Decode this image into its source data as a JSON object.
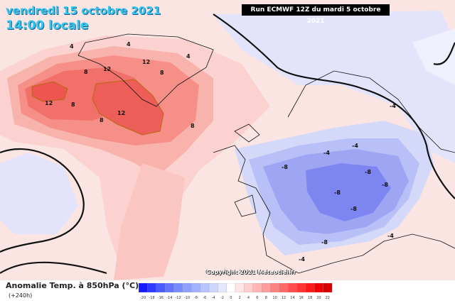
{
  "header": {
    "date_line": "vendredi 15 octobre 2021",
    "time_line": "14:00 locale",
    "run_info": "Run ECMWF 12Z du mardi 5 octobre 2021"
  },
  "footer": {
    "copyright": "Copyright 2021 Meteociel.fr"
  },
  "legend": {
    "title": "Anomalie Temp. à 850hPa (°C)",
    "lead": "(+240h)",
    "ticks": [
      "-20",
      "-18",
      "-16",
      "-14",
      "-12",
      "-10",
      "-8",
      "-6",
      "-4",
      "-2",
      "0",
      "2",
      "4",
      "6",
      "8",
      "10",
      "12",
      "14",
      "16",
      "18",
      "20",
      "22"
    ],
    "colors": [
      "#1a1aff",
      "#2e3cff",
      "#4a5cff",
      "#6375ff",
      "#7a8cff",
      "#8fa0ff",
      "#a3b2ff",
      "#b8c4ff",
      "#cdd6ff",
      "#e3e8ff",
      "#ffffff",
      "#ffe6e6",
      "#ffcfcf",
      "#ffb6b6",
      "#ff9c9c",
      "#ff8282",
      "#ff6868",
      "#ff4d4d",
      "#ff3333",
      "#ff1a1a",
      "#f00000",
      "#d80000"
    ]
  },
  "map_labels": {
    "contour_values": [
      "4",
      "4",
      "8",
      "12",
      "12",
      "12",
      "8",
      "12",
      "8",
      "8",
      "8",
      "4",
      "-4",
      "-4",
      "-4",
      "-8",
      "-8",
      "-8",
      "-8",
      "-8",
      "-8",
      "-4",
      "-4"
    ]
  },
  "colors": {
    "warm_core": "#f1706a",
    "warm_mid": "#f9a9a2",
    "warm_light": "#fbd2cf",
    "cold_core": "#7d86f0",
    "cold_mid": "#a9b1f5",
    "cold_light": "#d4d9fa",
    "contour": "#111111"
  }
}
